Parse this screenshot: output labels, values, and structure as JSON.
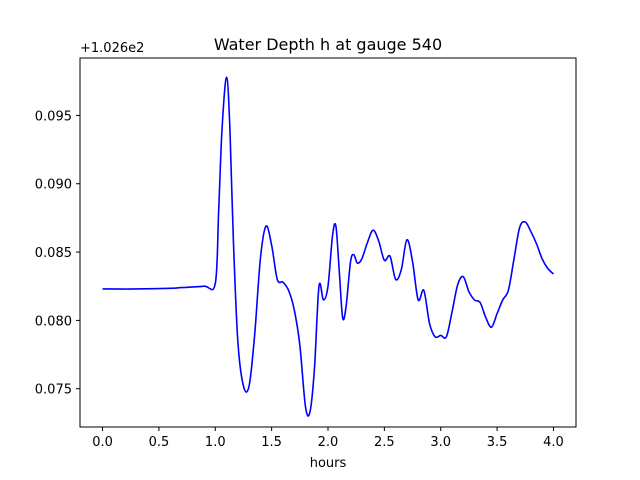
{
  "chart_data": {
    "type": "line",
    "title": "Water Depth h at gauge 540",
    "xlabel": "hours",
    "ylabel": "",
    "y_offset_label": "+1.026e2",
    "xlim": [
      -0.2,
      4.2
    ],
    "ylim": [
      0.0722,
      0.0992
    ],
    "x_ticks": [
      0.0,
      0.5,
      1.0,
      1.5,
      2.0,
      2.5,
      3.0,
      3.5,
      4.0
    ],
    "x_tick_labels": [
      "0.0",
      "0.5",
      "1.0",
      "1.5",
      "2.0",
      "2.5",
      "3.0",
      "3.5",
      "4.0"
    ],
    "y_ticks": [
      0.075,
      0.08,
      0.085,
      0.09,
      0.095
    ],
    "y_tick_labels": [
      "0.075",
      "0.080",
      "0.085",
      "0.090",
      "0.095"
    ],
    "grid": false,
    "series": [
      {
        "color": "#0000ff",
        "x": [
          0.0,
          0.3,
          0.6,
          0.7,
          0.9,
          1.0,
          1.03,
          1.06,
          1.1,
          1.13,
          1.16,
          1.2,
          1.25,
          1.3,
          1.35,
          1.4,
          1.45,
          1.5,
          1.55,
          1.6,
          1.65,
          1.7,
          1.75,
          1.8,
          1.84,
          1.88,
          1.92,
          1.96,
          2.0,
          2.04,
          2.07,
          2.1,
          2.13,
          2.16,
          2.2,
          2.23,
          2.26,
          2.3,
          2.35,
          2.4,
          2.45,
          2.5,
          2.55,
          2.6,
          2.65,
          2.7,
          2.75,
          2.8,
          2.85,
          2.9,
          2.95,
          3.0,
          3.05,
          3.1,
          3.15,
          3.2,
          3.25,
          3.3,
          3.35,
          3.4,
          3.45,
          3.5,
          3.55,
          3.6,
          3.65,
          3.7,
          3.75,
          3.8,
          3.85,
          3.9,
          3.95,
          4.0
        ],
        "y": [
          0.0823,
          0.0823,
          0.08235,
          0.0824,
          0.0825,
          0.0827,
          0.088,
          0.094,
          0.0978,
          0.094,
          0.086,
          0.0785,
          0.0752,
          0.0752,
          0.079,
          0.0845,
          0.0869,
          0.0855,
          0.083,
          0.0828,
          0.0822,
          0.0808,
          0.0782,
          0.0737,
          0.0733,
          0.0765,
          0.0825,
          0.0815,
          0.0825,
          0.0862,
          0.0869,
          0.0836,
          0.0802,
          0.081,
          0.0843,
          0.0848,
          0.0842,
          0.0845,
          0.0857,
          0.0866,
          0.0858,
          0.0844,
          0.0847,
          0.083,
          0.0837,
          0.0859,
          0.0843,
          0.0815,
          0.0822,
          0.0798,
          0.0788,
          0.0789,
          0.0788,
          0.0806,
          0.0826,
          0.0832,
          0.0821,
          0.0815,
          0.0813,
          0.0802,
          0.0795,
          0.0805,
          0.0815,
          0.0822,
          0.0845,
          0.0868,
          0.0872,
          0.0865,
          0.0856,
          0.0845,
          0.0838,
          0.0834
        ]
      }
    ]
  }
}
